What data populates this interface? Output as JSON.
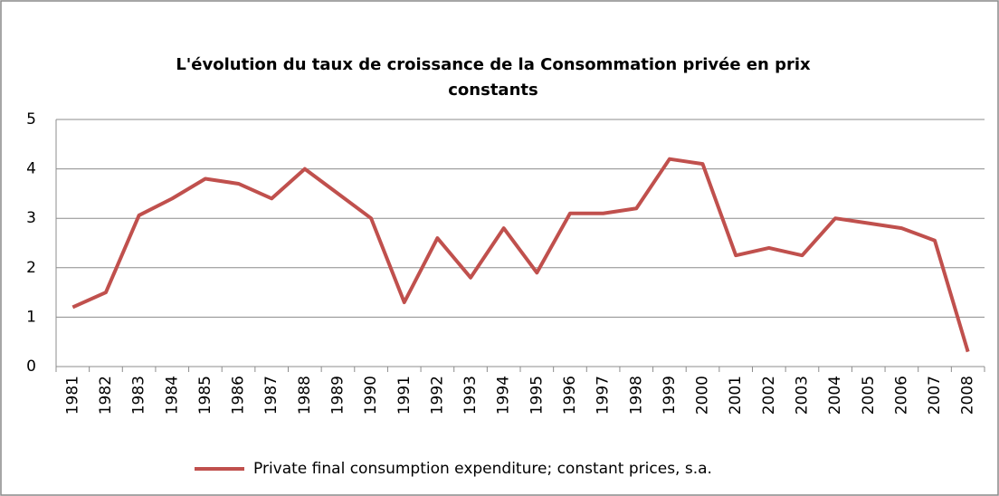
{
  "chart_data": {
    "type": "line",
    "title": "L'évolution du taux de croissance de la Consommation privée en prix constants",
    "categories": [
      "1981",
      "1982",
      "1983",
      "1984",
      "1985",
      "1986",
      "1987",
      "1988",
      "1989",
      "1990",
      "1991",
      "1992",
      "1993",
      "1994",
      "1995",
      "1996",
      "1997",
      "1998",
      "1999",
      "2000",
      "2001",
      "2002",
      "2003",
      "2004",
      "2005",
      "2006",
      "2007",
      "2008"
    ],
    "series": [
      {
        "name": "Private final consumption expenditure; constant prices, s.a.",
        "color": "#c0504d",
        "values": [
          1.2,
          1.5,
          3.06,
          3.4,
          3.8,
          3.7,
          3.4,
          4.0,
          3.5,
          3.0,
          1.3,
          2.6,
          1.8,
          2.8,
          1.9,
          3.1,
          3.1,
          3.2,
          4.2,
          4.1,
          2.25,
          2.4,
          2.25,
          3.0,
          2.9,
          2.8,
          2.55,
          0.3
        ]
      }
    ],
    "ylim": [
      0,
      5
    ],
    "yticks": [
      0,
      1,
      2,
      3,
      4,
      5
    ],
    "grid": true,
    "legend": "bottom"
  }
}
